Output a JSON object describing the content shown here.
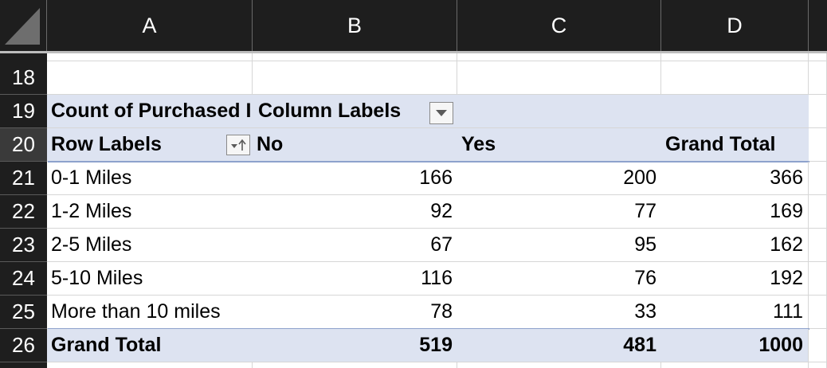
{
  "columns": [
    "A",
    "B",
    "C",
    "D"
  ],
  "rows": [
    "18",
    "19",
    "20",
    "21",
    "22",
    "23",
    "24",
    "25",
    "26"
  ],
  "pivot": {
    "value_header": "Count of Purchased I",
    "column_labels": "Column Labels",
    "row_labels": "Row Labels",
    "col_no": "No",
    "col_yes": "Yes",
    "col_grand_total": "Grand Total",
    "data_rows": [
      {
        "label": "0-1 Miles",
        "no": "166",
        "yes": "200",
        "total": "366"
      },
      {
        "label": "1-2 Miles",
        "no": "92",
        "yes": "77",
        "total": "169"
      },
      {
        "label": "2-5 Miles",
        "no": "67",
        "yes": "95",
        "total": "162"
      },
      {
        "label": "5-10 Miles",
        "no": "116",
        "yes": "76",
        "total": "192"
      },
      {
        "label": "More than 10 miles",
        "no": "78",
        "yes": "33",
        "total": "111"
      }
    ],
    "grand_total_row": {
      "label": "Grand Total",
      "no": "519",
      "yes": "481",
      "total": "1000"
    }
  },
  "icons": {
    "filter": "dropdown-filter-icon",
    "sort": "sort-filter-icon"
  },
  "colors": {
    "header_bg": "#1e1e1e",
    "pivot_band": "#dde3f1",
    "pivot_line": "#8ea2cc"
  }
}
